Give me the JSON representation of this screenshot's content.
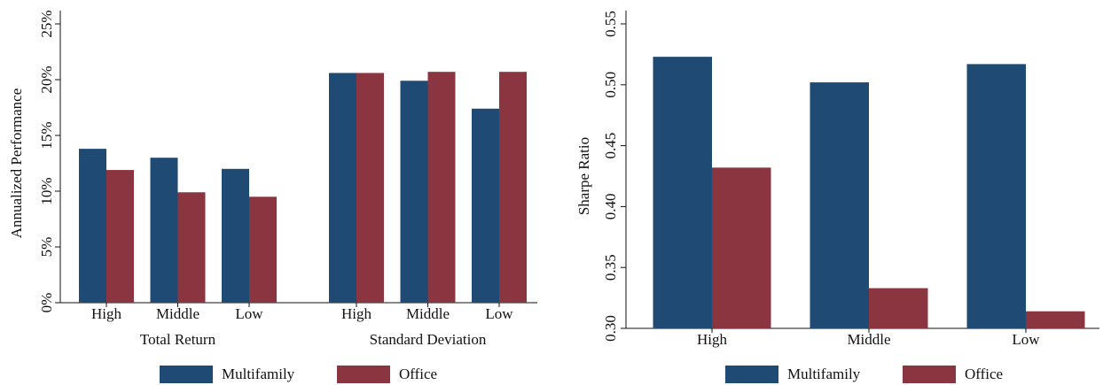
{
  "chart_data": [
    {
      "type": "bar",
      "y_label": "Annualized Performance",
      "categories": [
        "High",
        "Middle",
        "Low",
        "High",
        "Middle",
        "Low"
      ],
      "groups": [
        "Total Return",
        "Standard Deviation"
      ],
      "series": [
        {
          "name": "Multifamily",
          "color": "#1f4a73",
          "values": [
            13.8,
            13.0,
            12.0,
            20.6,
            19.9,
            17.4
          ]
        },
        {
          "name": "Office",
          "color": "#8b3540",
          "values": [
            11.9,
            9.9,
            9.5,
            20.6,
            20.7,
            20.7
          ]
        }
      ],
      "ylim": [
        0,
        25
      ],
      "yticks": [
        {
          "value": 0,
          "label": "0%"
        },
        {
          "value": 5,
          "label": "5%"
        },
        {
          "value": 10,
          "label": "10%"
        },
        {
          "value": 15,
          "label": "15%"
        },
        {
          "value": 20,
          "label": "20%"
        },
        {
          "value": 25,
          "label": "25%"
        }
      ],
      "legend": "bottom"
    },
    {
      "type": "bar",
      "y_label": "Sharpe Ratio",
      "categories": [
        "High",
        "Middle",
        "Low"
      ],
      "series": [
        {
          "name": "Multifamily",
          "color": "#1f4a73",
          "values": [
            0.523,
            0.502,
            0.517
          ]
        },
        {
          "name": "Office",
          "color": "#8b3540",
          "values": [
            0.432,
            0.333,
            0.314
          ]
        }
      ],
      "ylim": [
        0.3,
        0.55
      ],
      "yticks": [
        {
          "value": 0.3,
          "label": "0.30"
        },
        {
          "value": 0.35,
          "label": "0.35"
        },
        {
          "value": 0.4,
          "label": "0.40"
        },
        {
          "value": 0.45,
          "label": "0.45"
        },
        {
          "value": 0.5,
          "label": "0.50"
        },
        {
          "value": 0.55,
          "label": "0.55"
        }
      ],
      "legend": "bottom"
    }
  ]
}
